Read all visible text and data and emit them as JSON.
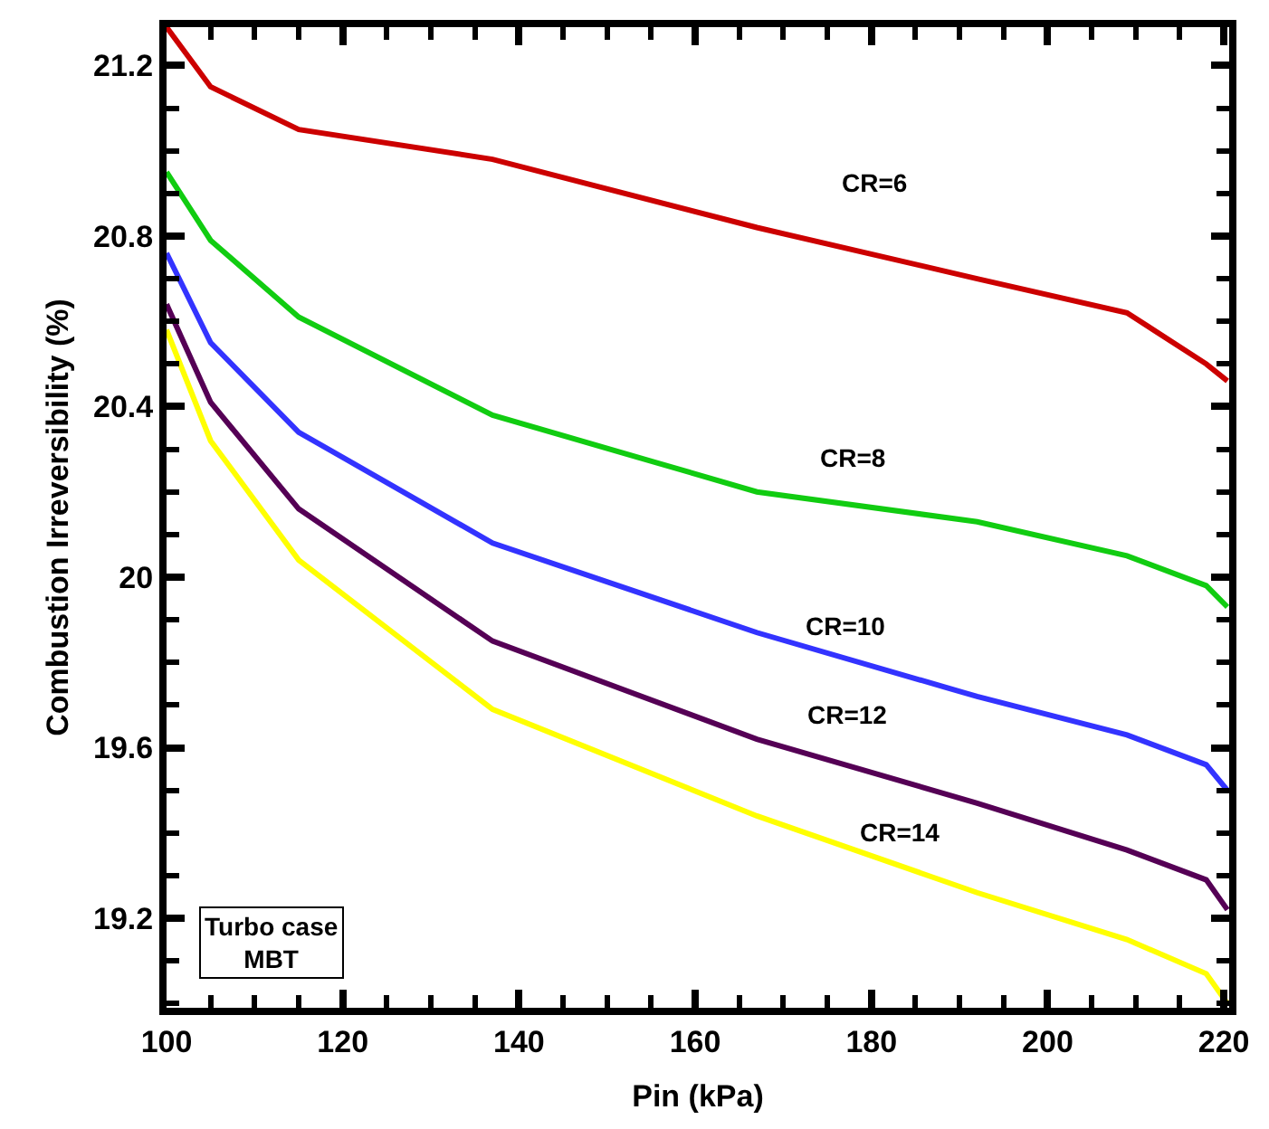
{
  "chart_data": {
    "type": "line",
    "xlabel": "Pin (kPa)",
    "ylabel": "Combustion Irreversibility (%)",
    "x": [
      100,
      105,
      115,
      137,
      167,
      192,
      209,
      218,
      220.4
    ],
    "series": [
      {
        "name": "CR=6",
        "color": "#cc0000",
        "values": [
          21.29,
          21.15,
          21.05,
          20.98,
          20.82,
          20.7,
          20.62,
          20.5,
          20.46
        ]
      },
      {
        "name": "CR=8",
        "color": "#11cc11",
        "values": [
          20.95,
          20.79,
          20.61,
          20.38,
          20.2,
          20.13,
          20.05,
          19.98,
          19.93
        ]
      },
      {
        "name": "CR=10",
        "color": "#3333ff",
        "values": [
          20.76,
          20.55,
          20.34,
          20.08,
          19.87,
          19.72,
          19.63,
          19.56,
          19.5
        ]
      },
      {
        "name": "CR=12",
        "color": "#550055",
        "values": [
          20.64,
          20.41,
          20.16,
          19.85,
          19.62,
          19.47,
          19.36,
          19.29,
          19.22
        ]
      },
      {
        "name": "CR=14",
        "color": "#ffff00",
        "values": [
          20.58,
          20.32,
          20.04,
          19.69,
          19.44,
          19.26,
          19.15,
          19.07,
          19.0
        ]
      }
    ],
    "xlim": [
      100,
      220.6
    ],
    "ylim": [
      18.99,
      21.29
    ],
    "xticks": [
      100,
      120,
      140,
      160,
      180,
      200,
      220
    ],
    "yticks": [
      19.2,
      19.6,
      20,
      20.4,
      20.8,
      21.2
    ],
    "legend": false,
    "marker": "none",
    "line_style": "solid",
    "annotations": [
      "Turbo case\nMBT"
    ]
  }
}
